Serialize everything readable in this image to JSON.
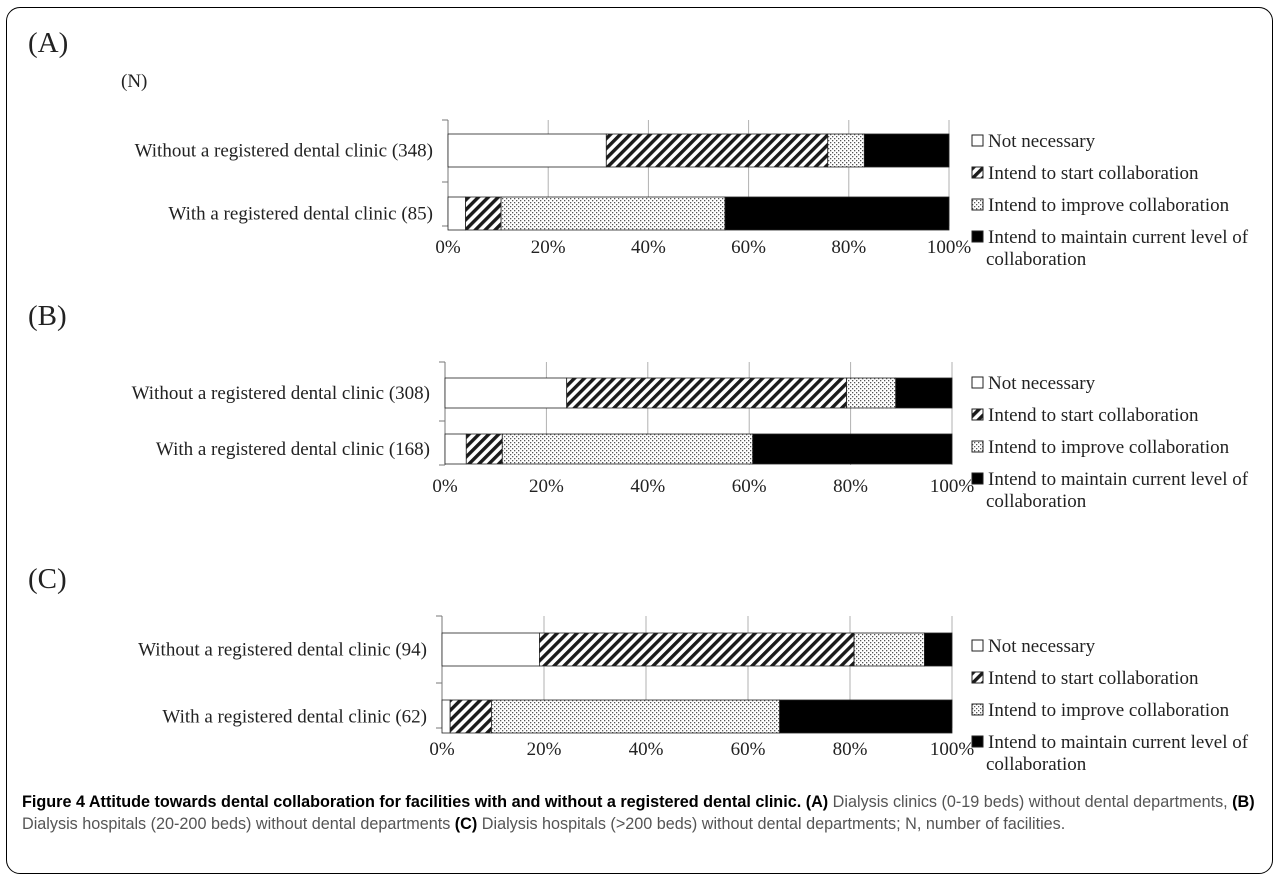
{
  "unit_label": "(N)",
  "legend": [
    {
      "label": "Not necessary"
    },
    {
      "label": "Intend to start collaboration"
    },
    {
      "label": "Intend to improve collaboration"
    },
    {
      "label": "Intend to maintain current level of",
      "label2": "collaboration"
    }
  ],
  "chart_data": [
    {
      "type": "bar",
      "panel": "(A)",
      "stacked": true,
      "orientation": "horizontal",
      "xlim": [
        0,
        100
      ],
      "x_ticks": [
        "0%",
        "20%",
        "40%",
        "60%",
        "80%",
        "100%"
      ],
      "categories": [
        "Without a registered dental clinic (348)",
        "With a registered dental clinic (85)"
      ],
      "series": [
        {
          "name": "Not necessary",
          "values": [
            31.6,
            3.5
          ]
        },
        {
          "name": "Intend to start collaboration",
          "values": [
            44.2,
            7.1
          ]
        },
        {
          "name": "Intend to improve collaboration",
          "values": [
            7.3,
            44.7
          ]
        },
        {
          "name": "Intend to maintain current level of collaboration",
          "values": [
            16.9,
            44.7
          ]
        }
      ]
    },
    {
      "type": "bar",
      "panel": "(B)",
      "stacked": true,
      "orientation": "horizontal",
      "xlim": [
        0,
        100
      ],
      "x_ticks": [
        "0%",
        "20%",
        "40%",
        "60%",
        "80%",
        "100%"
      ],
      "categories": [
        "Without a registered dental clinic (308)",
        "With a registered dental clinic (168)"
      ],
      "series": [
        {
          "name": "Not necessary",
          "values": [
            24.0,
            4.2
          ]
        },
        {
          "name": "Intend to start collaboration",
          "values": [
            55.2,
            7.1
          ]
        },
        {
          "name": "Intend to improve collaboration",
          "values": [
            9.7,
            49.4
          ]
        },
        {
          "name": "Intend to maintain current level of collaboration",
          "values": [
            11.1,
            39.3
          ]
        }
      ]
    },
    {
      "type": "bar",
      "panel": "(C)",
      "stacked": true,
      "orientation": "horizontal",
      "xlim": [
        0,
        100
      ],
      "x_ticks": [
        "0%",
        "20%",
        "40%",
        "60%",
        "80%",
        "100%"
      ],
      "categories": [
        "Without a registered dental clinic (94)",
        "With a registered dental clinic (62)"
      ],
      "series": [
        {
          "name": "Not necessary",
          "values": [
            19.1,
            1.6
          ]
        },
        {
          "name": "Intend to start collaboration",
          "values": [
            61.7,
            8.1
          ]
        },
        {
          "name": "Intend to improve collaboration",
          "values": [
            13.8,
            56.5
          ]
        },
        {
          "name": "Intend to maintain current level of collaboration",
          "values": [
            5.4,
            33.8
          ]
        }
      ]
    }
  ],
  "caption": {
    "title": "Figure 4 Attitude towards dental collaboration for facilities with and without a registered dental clinic.",
    "a_tag": "(A)",
    "a_text": " Dialysis clinics (0-19 beds) without dental departments, ",
    "b_tag": "(B)",
    "b_text": " Dialysis hospitals (20-200 beds) without dental departments ",
    "c_tag": "(C)",
    "c_text": " Dialysis hospitals (>200 beds) without dental departments; N, number of facilities."
  }
}
